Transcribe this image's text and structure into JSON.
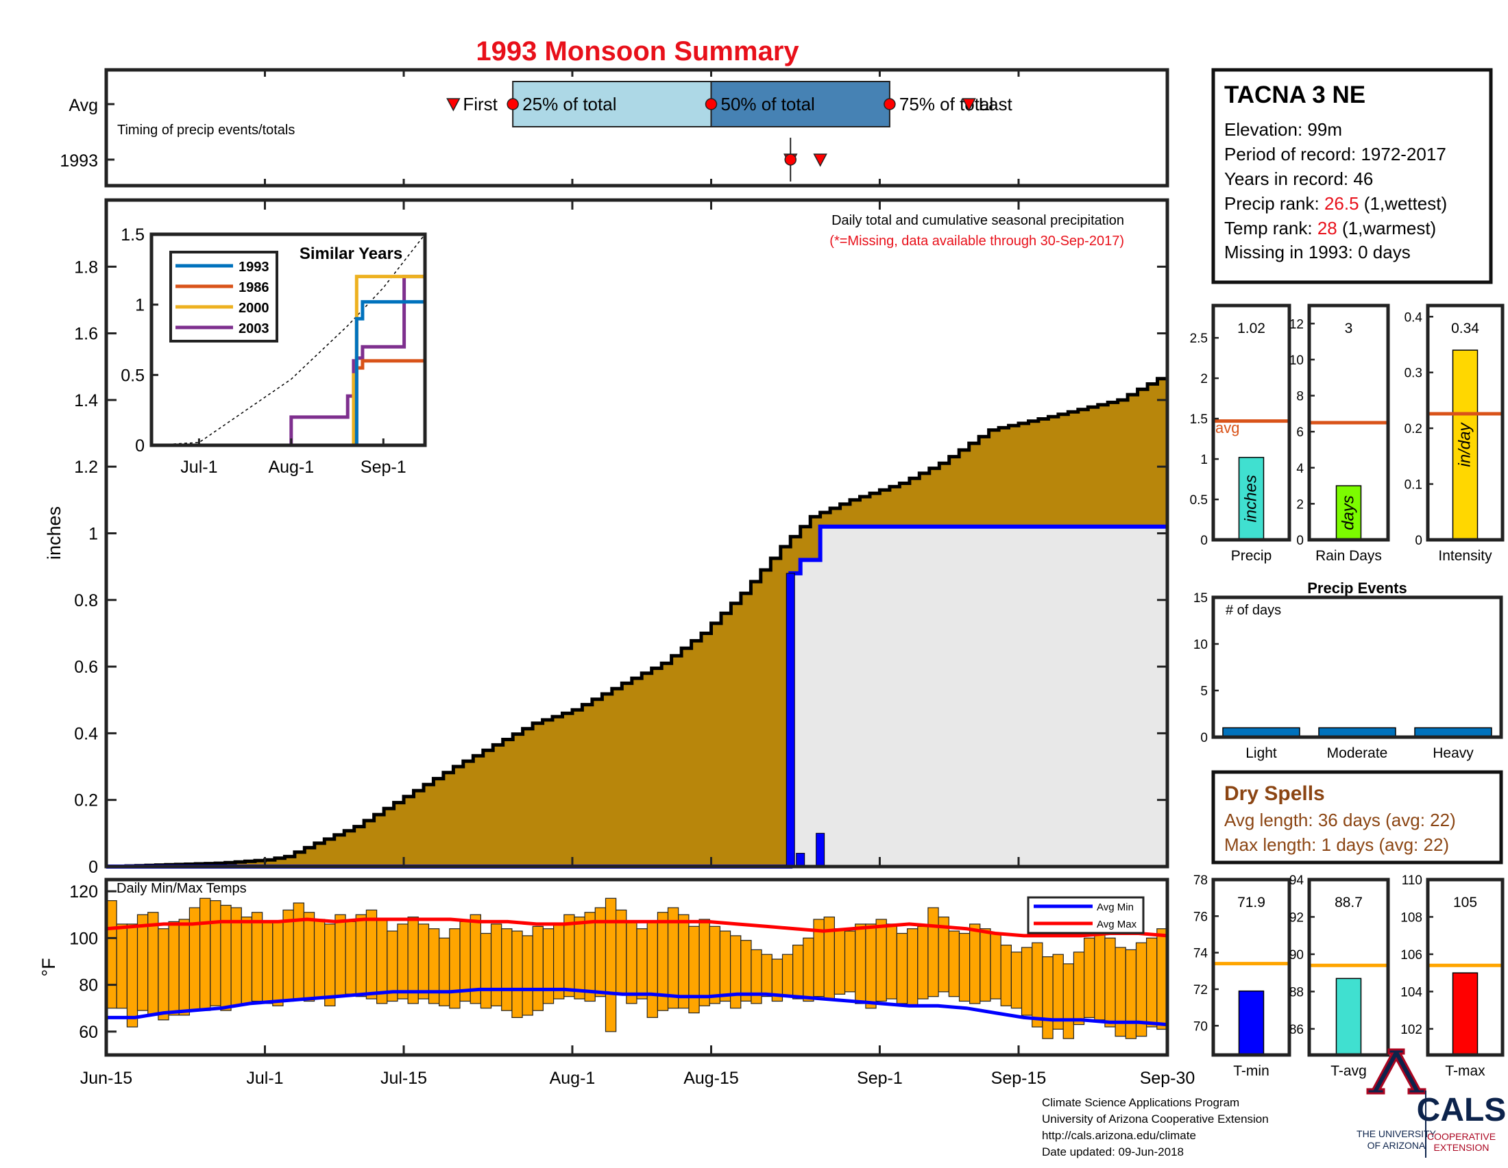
{
  "title": "1993 Monsoon Summary",
  "timing": {
    "caption": "Timing of precip events/totals",
    "row_labels": [
      "Avg",
      "1993"
    ],
    "markers": [
      "First",
      "25% of total",
      "50% of total",
      "75% of total",
      "Last"
    ],
    "avg": {
      "first": "Jul-20",
      "p25": "Jul-26",
      "p50": "Aug-15",
      "p75": "Sep-2",
      "last": "Sep-10"
    },
    "year": {
      "p25": "Aug-23",
      "p50": "Aug-23",
      "p75": "Aug-23",
      "first": "Aug-23",
      "last": "Aug-26"
    },
    "colors": {
      "q1": "#add8e6",
      "q2": "#4682b4",
      "marker": "#ff0000"
    }
  },
  "station": {
    "name": "TACNA 3 NE",
    "elevation": "Elevation: 99m",
    "period_label": "Period of record: ",
    "period_value": "1972-2017",
    "years_label": "Years in record: ",
    "years_value": "46",
    "precip_rank_label": "Precip rank: ",
    "precip_rank_value": "26.5",
    "precip_rank_suffix": " (1,wettest)",
    "temp_rank_label": "Temp rank: ",
    "temp_rank_value": "28",
    "temp_rank_suffix": " (1,warmest)",
    "missing": "Missing in 1993: 0 days"
  },
  "main_chart": {
    "note": "Daily total and cumulative seasonal precipitation",
    "missing_note": "(*=Missing, data available through 30-Sep-2017)",
    "ylabel": "inches",
    "ylim": [
      0,
      2
    ],
    "yticks": [
      "0",
      "0.2",
      "0.4",
      "0.6",
      "0.8",
      "1",
      "1.2",
      "1.4",
      "1.6",
      "1.8"
    ],
    "ytick_values": [
      0,
      0.2,
      0.4,
      0.6,
      0.8,
      1.0,
      1.2,
      1.4,
      1.6,
      1.8
    ],
    "xlabels": [
      "Jun-15",
      "Jul-1",
      "Jul-15",
      "Aug-1",
      "Aug-15",
      "Sep-1",
      "Sep-15",
      "Sep-30"
    ],
    "colors": {
      "avg_cum": "#b8860b",
      "year_cum": "#0000ff",
      "daily_bar": "#0000ff",
      "year_fill": "#e8e8e8"
    }
  },
  "chart_data": [
    {
      "type": "area",
      "series": [
        {
          "name": "avg cumulative",
          "x": [
            "Jun-15",
            "Jun-26",
            "Jul-1",
            "Jul-3",
            "Jul-6",
            "Jul-10",
            "Jul-20",
            "Jul-28",
            "Aug-1",
            "Aug-6",
            "Aug-10",
            "Aug-14",
            "Aug-18",
            "Aug-22",
            "Aug-25",
            "Aug-29",
            "Sep-3",
            "Sep-7",
            "Sep-12",
            "Sep-18",
            "Sep-25",
            "Sep-30"
          ],
          "values": [
            0,
            0.01,
            0.02,
            0.03,
            0.07,
            0.12,
            0.3,
            0.43,
            0.47,
            0.55,
            0.61,
            0.7,
            0.82,
            0.96,
            1.05,
            1.1,
            1.15,
            1.21,
            1.31,
            1.35,
            1.4,
            1.48
          ]
        },
        {
          "name": "1993 cumulative",
          "x": [
            "Jun-15",
            "Aug-23",
            "Aug-24",
            "Aug-26",
            "Sep-30"
          ],
          "values": [
            0,
            0.88,
            0.92,
            1.02,
            1.02
          ]
        }
      ],
      "xlabel": "",
      "ylabel": "inches",
      "ylim": [
        0,
        2
      ]
    },
    {
      "type": "bar",
      "name": "daily precipitation 1993",
      "x": [
        "Aug-23",
        "Aug-24",
        "Aug-26"
      ],
      "values": [
        0.88,
        0.04,
        0.1
      ]
    },
    {
      "type": "line",
      "title": "Similar Years",
      "x": [
        "Jun-15",
        "Jul-1",
        "Aug-1",
        "Aug-20",
        "Aug-22",
        "Aug-23",
        "Aug-25",
        "Sep-8",
        "Sep-15"
      ],
      "series": [
        {
          "name": "1993",
          "values": [
            0,
            0,
            0,
            0,
            0,
            0.9,
            1.02,
            1.02,
            1.02
          ]
        },
        {
          "name": "1986",
          "values": [
            0,
            0,
            0,
            0,
            0,
            0.55,
            0.6,
            0.6,
            0.98
          ]
        },
        {
          "name": "2000",
          "values": [
            0,
            0,
            0,
            0,
            0.5,
            1.2,
            1.2,
            1.2,
            1.2
          ]
        },
        {
          "name": "2003",
          "values": [
            0,
            0,
            0.2,
            0.35,
            0.6,
            0.62,
            0.7,
            1.2,
            1.2
          ]
        }
      ],
      "yticks": [
        "0",
        "0.5",
        "1",
        "1.5"
      ],
      "ytick_values": [
        0,
        0.5,
        1,
        1.5
      ],
      "xticks": [
        "Jul-1",
        "Aug-1",
        "Sep-1"
      ],
      "ylim": [
        0,
        1.5
      ]
    },
    {
      "type": "bar",
      "title": "Daily Min/Max Temps",
      "ylabel": "°F",
      "yticks": [
        "60",
        "80",
        "100",
        "120"
      ],
      "ytick_values": [
        60,
        80,
        100,
        120
      ],
      "ylim": [
        50,
        125
      ],
      "legend": [
        "Avg Min",
        "Avg Max"
      ],
      "legend_position": "top-right",
      "colors": {
        "bar": "#ffa500",
        "avg_min": "#0000ff",
        "avg_max": "#ff0000"
      },
      "daily_max": [
        116,
        106,
        106,
        110,
        111,
        104,
        107,
        108,
        113,
        117,
        116,
        114,
        113,
        109,
        111,
        107,
        107,
        112,
        115,
        111,
        108,
        106,
        110,
        107,
        110,
        112,
        108,
        103,
        106,
        109,
        106,
        104,
        100,
        104,
        107,
        110,
        102,
        106,
        104,
        103,
        101,
        105,
        104,
        106,
        110,
        109,
        111,
        113,
        117,
        112,
        107,
        104,
        107,
        111,
        113,
        110,
        105,
        108,
        105,
        103,
        101,
        99,
        95,
        93,
        91,
        93,
        97,
        100,
        108,
        109,
        104,
        103,
        106,
        106,
        108,
        106,
        102,
        104,
        105,
        113,
        109,
        103,
        102,
        106,
        104,
        102,
        97,
        94,
        96,
        98,
        92,
        93,
        89,
        94,
        100,
        103,
        100,
        96,
        95,
        98,
        100,
        104
      ],
      "daily_min": [
        70,
        70,
        62,
        69,
        67,
        65,
        67,
        67,
        69,
        69,
        71,
        69,
        71,
        72,
        73,
        72,
        71,
        73,
        74,
        73,
        74,
        71,
        75,
        76,
        75,
        74,
        72,
        73,
        74,
        72,
        74,
        72,
        71,
        70,
        73,
        72,
        70,
        71,
        69,
        66,
        67,
        69,
        72,
        74,
        75,
        74,
        73,
        75,
        60,
        76,
        72,
        74,
        66,
        69,
        70,
        70,
        68,
        71,
        72,
        73,
        70,
        73,
        72,
        75,
        73,
        75,
        74,
        73,
        75,
        74,
        76,
        77,
        72,
        70,
        73,
        74,
        72,
        71,
        74,
        75,
        77,
        75,
        73,
        72,
        73,
        74,
        71,
        70,
        67,
        62,
        57,
        61,
        57,
        63,
        66,
        65,
        62,
        58,
        57,
        58,
        62,
        61
      ],
      "avg_max": [
        104,
        105,
        106,
        106,
        107,
        107,
        107,
        108,
        107,
        108,
        108,
        108,
        108,
        107,
        107,
        106,
        106,
        107,
        107,
        107,
        107,
        107,
        106,
        105,
        104,
        103,
        104,
        105,
        106,
        105,
        104,
        102,
        101,
        101,
        101,
        102,
        102,
        101
      ],
      "avg_min": [
        66,
        66,
        68,
        69,
        70,
        72,
        73,
        74,
        75,
        76,
        77,
        77,
        77,
        78,
        78,
        78,
        78,
        77,
        76,
        76,
        75,
        75,
        76,
        76,
        75,
        74,
        73,
        72,
        71,
        71,
        70,
        68,
        66,
        65,
        65,
        64,
        64,
        63
      ]
    },
    {
      "type": "bar",
      "title": "Precip",
      "categories": [
        "Precip",
        "Rain Days",
        "Intensity"
      ],
      "values": [
        1.02,
        3,
        0.34
      ],
      "value_labels": [
        "1.02",
        "3",
        "0.34"
      ],
      "units": [
        "inches",
        "days",
        "in/day"
      ],
      "averages": [
        1.47,
        6.5,
        0.226
      ],
      "avg_label": "avg",
      "ylims": [
        [
          0,
          2.9
        ],
        [
          0,
          13
        ],
        [
          0,
          0.42
        ]
      ],
      "yticks": [
        [
          "0",
          "0.5",
          "1",
          "1.5",
          "2",
          "2.5"
        ],
        [
          "0",
          "2",
          "4",
          "6",
          "8",
          "10",
          "12"
        ],
        [
          "0",
          "0.1",
          "0.2",
          "0.3",
          "0.4"
        ]
      ],
      "ytick_values": [
        [
          0,
          0.5,
          1,
          1.5,
          2,
          2.5
        ],
        [
          0,
          2,
          4,
          6,
          8,
          10,
          12
        ],
        [
          0,
          0.1,
          0.2,
          0.3,
          0.4
        ]
      ],
      "colors": [
        "#40e0d0",
        "#7cfc00",
        "#ffd700"
      ]
    },
    {
      "type": "bar",
      "title": "Precip Events",
      "ylabel": "# of days",
      "categories": [
        "Light",
        "Moderate",
        "Heavy"
      ],
      "values": [
        1,
        1,
        1
      ],
      "ylim": [
        0,
        15
      ],
      "yticks": [
        "0",
        "5",
        "10",
        "15"
      ],
      "ytick_values": [
        0,
        5,
        10,
        15
      ]
    },
    {
      "type": "bar",
      "title": "Temps",
      "categories": [
        "T-min",
        "T-avg",
        "T-max"
      ],
      "values": [
        71.9,
        88.7,
        105
      ],
      "value_labels": [
        "71.9",
        "88.7",
        "105"
      ],
      "averages": [
        73.4,
        89.4,
        105.4
      ],
      "ylims": [
        [
          68.4,
          78
        ],
        [
          84.6,
          94
        ],
        [
          100.6,
          110
        ]
      ],
      "yticks": [
        [
          "70",
          "72",
          "74",
          "76",
          "78"
        ],
        [
          "86",
          "88",
          "90",
          "92",
          "94"
        ],
        [
          "102",
          "104",
          "106",
          "108",
          "110"
        ]
      ],
      "ytick_values": [
        [
          70,
          72,
          74,
          76,
          78
        ],
        [
          86,
          88,
          90,
          92,
          94
        ],
        [
          102,
          104,
          106,
          108,
          110
        ]
      ],
      "colors": [
        "#0000ff",
        "#40e0d0",
        "#ff0000"
      ],
      "avg_color": "#ffa500"
    }
  ],
  "dry_spells": {
    "title": "Dry Spells",
    "avg": "Avg length: 36 days (avg: 22)",
    "max": "Max length: 1 days (avg: 22)"
  },
  "footer": {
    "line1": "Climate Science Applications Program",
    "line2": "University of Arizona Cooperative Extension",
    "line3": "http://cals.arizona.edu/climate",
    "line4": " Date updated: 09-Jun-2018"
  },
  "logos": {
    "ua_line1": "THE UNIVERSITY",
    "ua_line2": "OF ARIZONA",
    "cals": "CALS",
    "cals_line1": "COOPERATIVE",
    "cals_line2": "EXTENSION",
    "ua_blue": "#0c234b",
    "ua_red": "#ab0520"
  }
}
